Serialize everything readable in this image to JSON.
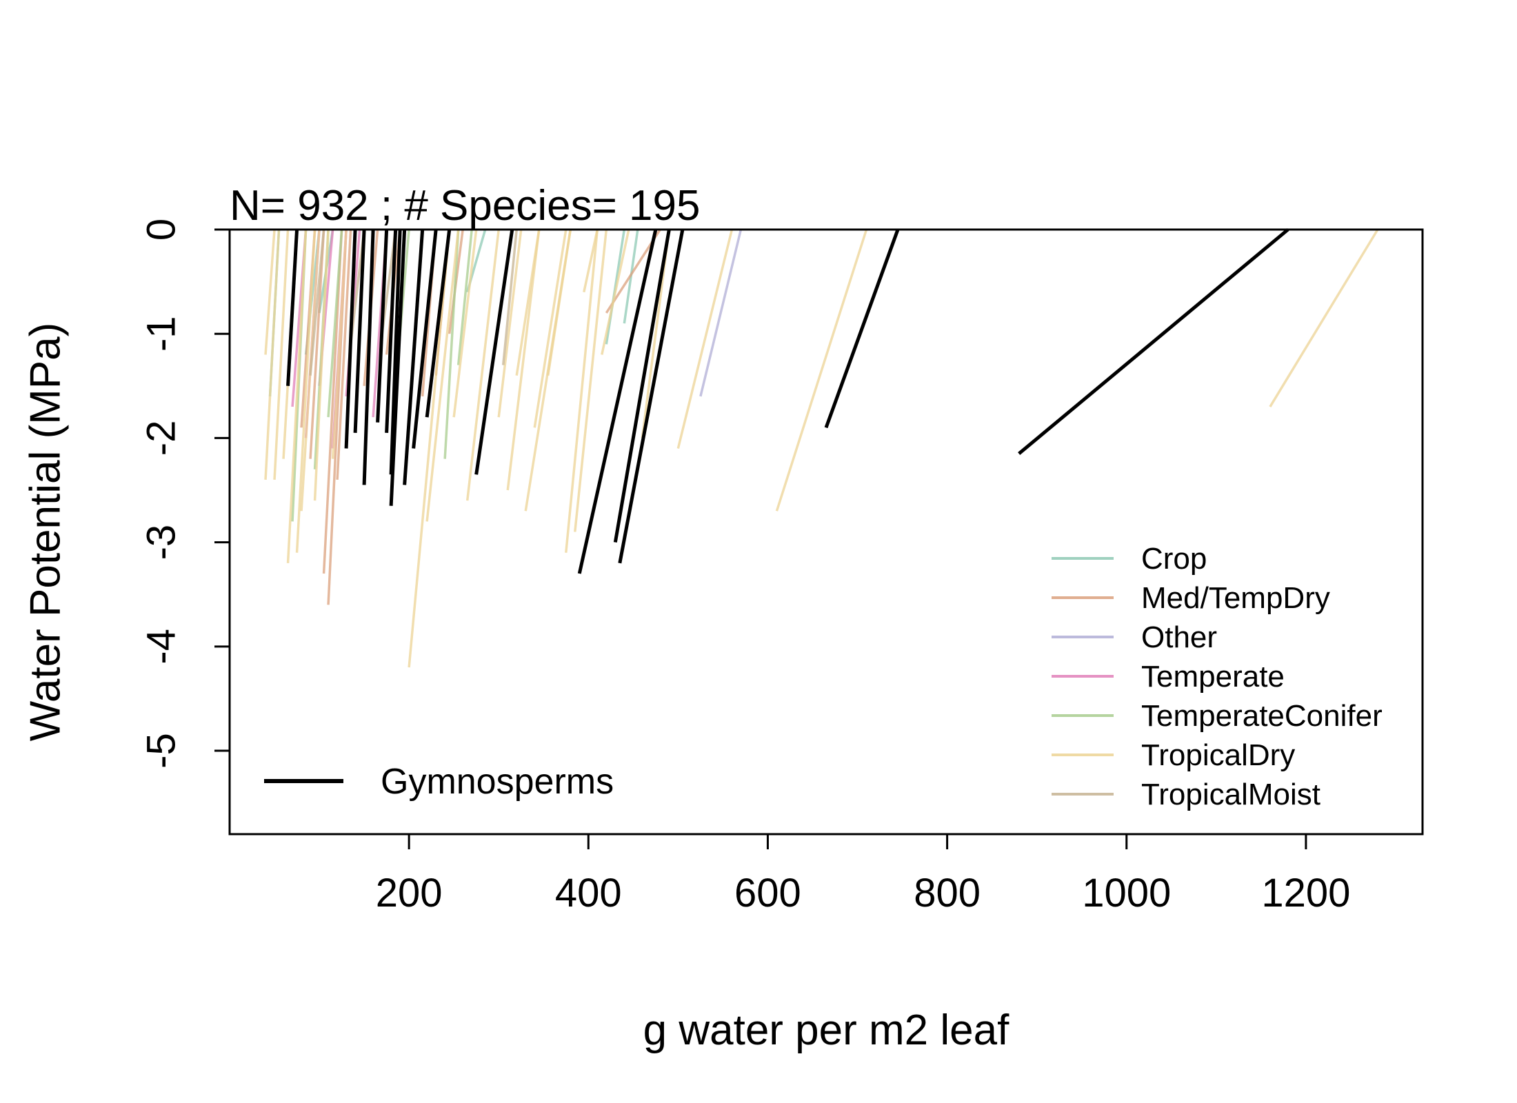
{
  "chart_data": {
    "type": "line",
    "title": "N= 932 ;  # Species= 195",
    "xlabel": "g water per m2 leaf",
    "ylabel": "Water Potential (MPa)",
    "xlim": [
      0,
      1330
    ],
    "ylim": [
      -5.8,
      0
    ],
    "x_ticks": [
      {
        "value": 200,
        "label": "200"
      },
      {
        "value": 400,
        "label": "400"
      },
      {
        "value": 600,
        "label": "600"
      },
      {
        "value": 800,
        "label": "800"
      },
      {
        "value": 1000,
        "label": "1000"
      },
      {
        "value": 1200,
        "label": "1200"
      }
    ],
    "y_ticks": [
      {
        "value": 0,
        "label": "0"
      },
      {
        "value": -1,
        "label": "-1"
      },
      {
        "value": -2,
        "label": "-2"
      },
      {
        "value": -3,
        "label": "-3"
      },
      {
        "value": -4,
        "label": "-4"
      },
      {
        "value": -5,
        "label": "-5"
      }
    ],
    "grid": false,
    "legend_groups": {
      "position": "bottom-right",
      "items": [
        {
          "name": "Crop",
          "color": "#8ec9b4"
        },
        {
          "name": "Med/TempDry",
          "color": "#dba07c"
        },
        {
          "name": "Other",
          "color": "#b0aed6"
        },
        {
          "name": "Temperate",
          "color": "#e07fb8"
        },
        {
          "name": "TemperateConifer",
          "color": "#a8cc8e"
        },
        {
          "name": "TropicalDry",
          "color": "#ecd394"
        },
        {
          "name": "TropicalMoist",
          "color": "#c6b392"
        }
      ]
    },
    "legend_gymnosperms": {
      "position": "bottom-left",
      "name": "Gymnosperms",
      "color": "#000000"
    },
    "series": [
      {
        "group": "Gymnosperms",
        "segments": [
          [
            [
              65,
              -1.5
            ],
            [
              75,
              0
            ]
          ],
          [
            [
              130,
              -2.1
            ],
            [
              140,
              0
            ]
          ],
          [
            [
              140,
              -1.95
            ],
            [
              150,
              0
            ]
          ],
          [
            [
              150,
              -2.45
            ],
            [
              160,
              0
            ]
          ],
          [
            [
              165,
              -1.85
            ],
            [
              175,
              0
            ]
          ],
          [
            [
              175,
              -1.95
            ],
            [
              185,
              0
            ]
          ],
          [
            [
              180,
              -2.35
            ],
            [
              190,
              0
            ]
          ],
          [
            [
              180,
              -2.65
            ],
            [
              195,
              0
            ]
          ],
          [
            [
              195,
              -2.45
            ],
            [
              215,
              0
            ]
          ],
          [
            [
              205,
              -2.1
            ],
            [
              230,
              0
            ]
          ],
          [
            [
              220,
              -1.8
            ],
            [
              245,
              0
            ]
          ],
          [
            [
              275,
              -2.35
            ],
            [
              315,
              0
            ]
          ],
          [
            [
              390,
              -3.3
            ],
            [
              475,
              0
            ]
          ],
          [
            [
              430,
              -3.0
            ],
            [
              490,
              0
            ]
          ],
          [
            [
              435,
              -3.2
            ],
            [
              505,
              0
            ]
          ],
          [
            [
              665,
              -1.9
            ],
            [
              745,
              0
            ]
          ],
          [
            [
              880,
              -2.15
            ],
            [
              1180,
              0
            ]
          ]
        ]
      },
      {
        "group": "Crop",
        "segments": [
          [
            [
              45,
              -1.6
            ],
            [
              55,
              0
            ]
          ],
          [
            [
              85,
              -1.2
            ],
            [
              100,
              0
            ]
          ],
          [
            [
              100,
              -0.8
            ],
            [
              115,
              0
            ]
          ],
          [
            [
              265,
              -0.6
            ],
            [
              285,
              0
            ]
          ],
          [
            [
              420,
              -1.1
            ],
            [
              440,
              0
            ]
          ],
          [
            [
              440,
              -0.9
            ],
            [
              455,
              0
            ]
          ]
        ]
      },
      {
        "group": "Med/TempDry",
        "segments": [
          [
            [
              80,
              -1.9
            ],
            [
              95,
              0
            ]
          ],
          [
            [
              90,
              -2.2
            ],
            [
              105,
              0
            ]
          ],
          [
            [
              105,
              -3.3
            ],
            [
              125,
              0
            ]
          ],
          [
            [
              110,
              -3.6
            ],
            [
              130,
              0
            ]
          ],
          [
            [
              120,
              -2.4
            ],
            [
              135,
              0
            ]
          ],
          [
            [
              150,
              -1.5
            ],
            [
              165,
              0
            ]
          ],
          [
            [
              175,
              -1.2
            ],
            [
              190,
              0
            ]
          ],
          [
            [
              215,
              -1.6
            ],
            [
              230,
              0
            ]
          ],
          [
            [
              230,
              -1.4
            ],
            [
              245,
              0
            ]
          ],
          [
            [
              245,
              -1.0
            ],
            [
              260,
              0
            ]
          ],
          [
            [
              420,
              -0.8
            ],
            [
              480,
              0
            ]
          ]
        ]
      },
      {
        "group": "Other",
        "segments": [
          [
            [
              525,
              -1.6
            ],
            [
              570,
              0
            ]
          ]
        ]
      },
      {
        "group": "Temperate",
        "segments": [
          [
            [
              70,
              -1.7
            ],
            [
              85,
              0
            ]
          ],
          [
            [
              85,
              -2.0
            ],
            [
              100,
              0
            ]
          ],
          [
            [
              100,
              -1.5
            ],
            [
              115,
              0
            ]
          ],
          [
            [
              115,
              -2.1
            ],
            [
              130,
              0
            ]
          ],
          [
            [
              130,
              -1.6
            ],
            [
              145,
              0
            ]
          ],
          [
            [
              160,
              -1.8
            ],
            [
              175,
              0
            ]
          ]
        ]
      },
      {
        "group": "TemperateConifer",
        "segments": [
          [
            [
              70,
              -2.8
            ],
            [
              85,
              0
            ]
          ],
          [
            [
              95,
              -2.3
            ],
            [
              110,
              0
            ]
          ],
          [
            [
              110,
              -1.8
            ],
            [
              125,
              0
            ]
          ],
          [
            [
              185,
              -1.5
            ],
            [
              200,
              0
            ]
          ],
          [
            [
              240,
              -2.2
            ],
            [
              255,
              0
            ]
          ],
          [
            [
              255,
              -1.3
            ],
            [
              270,
              0
            ]
          ]
        ]
      },
      {
        "group": "TropicalDry",
        "segments": [
          [
            [
              40,
              -2.4
            ],
            [
              55,
              0
            ]
          ],
          [
            [
              40,
              -1.2
            ],
            [
              50,
              0
            ]
          ],
          [
            [
              50,
              -2.4
            ],
            [
              65,
              0
            ]
          ],
          [
            [
              60,
              -2.2
            ],
            [
              75,
              0
            ]
          ],
          [
            [
              65,
              -3.2
            ],
            [
              85,
              0
            ]
          ],
          [
            [
              75,
              -3.1
            ],
            [
              95,
              0
            ]
          ],
          [
            [
              80,
              -2.7
            ],
            [
              100,
              0
            ]
          ],
          [
            [
              95,
              -2.6
            ],
            [
              110,
              0
            ]
          ],
          [
            [
              115,
              -2.2
            ],
            [
              130,
              0
            ]
          ],
          [
            [
              200,
              -4.2
            ],
            [
              245,
              0
            ]
          ],
          [
            [
              220,
              -2.8
            ],
            [
              255,
              0
            ]
          ],
          [
            [
              250,
              -1.8
            ],
            [
              275,
              0
            ]
          ],
          [
            [
              265,
              -2.6
            ],
            [
              300,
              0
            ]
          ],
          [
            [
              300,
              -1.8
            ],
            [
              325,
              0
            ]
          ],
          [
            [
              310,
              -2.5
            ],
            [
              345,
              0
            ]
          ],
          [
            [
              320,
              -1.4
            ],
            [
              345,
              0
            ]
          ],
          [
            [
              330,
              -2.7
            ],
            [
              380,
              0
            ]
          ],
          [
            [
              340,
              -1.9
            ],
            [
              375,
              0
            ]
          ],
          [
            [
              355,
              -1.4
            ],
            [
              380,
              0
            ]
          ],
          [
            [
              375,
              -3.1
            ],
            [
              410,
              0
            ]
          ],
          [
            [
              385,
              -2.9
            ],
            [
              420,
              0
            ]
          ],
          [
            [
              395,
              -0.6
            ],
            [
              410,
              0
            ]
          ],
          [
            [
              415,
              -1.2
            ],
            [
              445,
              0
            ]
          ],
          [
            [
              460,
              -2.0
            ],
            [
              490,
              0
            ]
          ],
          [
            [
              500,
              -2.1
            ],
            [
              560,
              0
            ]
          ],
          [
            [
              610,
              -2.7
            ],
            [
              710,
              0
            ]
          ],
          [
            [
              1160,
              -1.7
            ],
            [
              1280,
              0
            ]
          ]
        ]
      },
      {
        "group": "TropicalMoist",
        "segments": [
          [
            [
              90,
              -1.4
            ],
            [
              105,
              0
            ]
          ],
          [
            [
              135,
              -1.1
            ],
            [
              150,
              0
            ]
          ],
          [
            [
              170,
              -1.0
            ],
            [
              185,
              0
            ]
          ],
          [
            [
              305,
              -1.3
            ],
            [
              320,
              0
            ]
          ]
        ]
      }
    ]
  }
}
